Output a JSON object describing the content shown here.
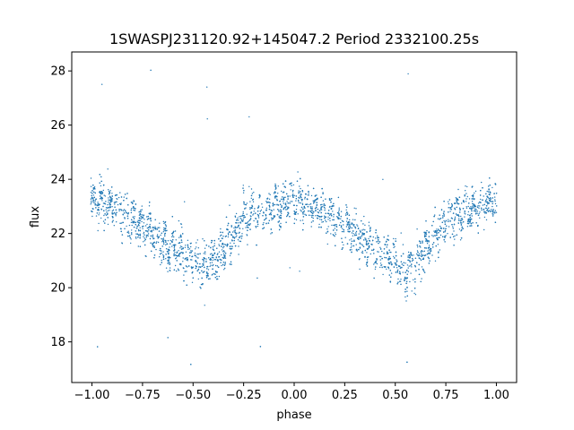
{
  "chart_data": {
    "type": "scatter",
    "title": "1SWASPJ231120.92+145047.2 Period 2332100.25s",
    "xlabel": "phase",
    "ylabel": "flux",
    "xlim": [
      -1.1,
      1.1
    ],
    "ylim": [
      16.5,
      28.7
    ],
    "xticks": [
      -1.0,
      -0.75,
      -0.5,
      -0.25,
      0.0,
      0.25,
      0.5,
      0.75,
      1.0
    ],
    "xtick_labels": [
      "−1.00",
      "−0.75",
      "−0.50",
      "−0.25",
      "0.00",
      "0.25",
      "0.50",
      "0.75",
      "1.00"
    ],
    "yticks": [
      18,
      20,
      22,
      24,
      26,
      28
    ],
    "ytick_labels": [
      "18",
      "20",
      "22",
      "24",
      "26",
      "28"
    ],
    "grid": false,
    "marker_color": "#1f77b4",
    "series": [
      {
        "phase_profile": {
          "x": [
            -1.0,
            -0.9,
            -0.75,
            -0.6,
            -0.5,
            -0.45,
            -0.35,
            -0.25,
            -0.1,
            0.0,
            0.1,
            0.25,
            0.4,
            0.5,
            0.55,
            0.65,
            0.75,
            0.9,
            1.0
          ],
          "median_flux": [
            23.2,
            23.0,
            22.3,
            21.4,
            21.0,
            20.6,
            21.4,
            22.5,
            23.0,
            23.2,
            23.0,
            22.3,
            21.4,
            21.0,
            20.6,
            21.4,
            22.5,
            23.0,
            23.2
          ],
          "scatter_halfwidth": [
            1.0,
            1.1,
            1.0,
            1.1,
            1.2,
            1.2,
            1.1,
            1.0,
            0.9,
            0.9,
            0.9,
            1.0,
            1.1,
            1.2,
            1.2,
            1.1,
            1.0,
            1.0,
            1.0
          ]
        },
        "outlier_range": [
          17.0,
          28.2
        ]
      }
    ]
  }
}
